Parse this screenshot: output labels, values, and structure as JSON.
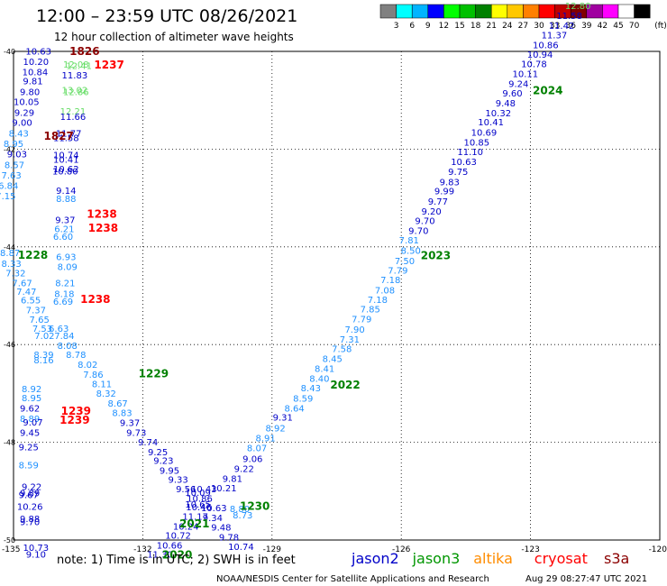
{
  "header": {
    "title": "12:00 – 23:59 UTC 08/26/2021",
    "subtitle": "12 hour collection of altimeter wave heights"
  },
  "footer": {
    "note": "note:  1) Time is in UTC; 2) SWH is in feet",
    "credit": "NOAA/NESDIS Center for Satellite Applications and Research",
    "stamp": "Aug 29 08:27:47 UTC 2021"
  },
  "legend": {
    "unit": "(ft)",
    "colors": [
      "#808080",
      "#00ffff",
      "#00b4ff",
      "#0000ff",
      "#00ff00",
      "#00c000",
      "#008000",
      "#ffff00",
      "#ffc800",
      "#ff8000",
      "#ff0000",
      "#c00000",
      "#800000",
      "#a000a0",
      "#ff00ff",
      "#ffffff",
      "#000000"
    ],
    "labels": [
      "3",
      "6",
      "9",
      "12",
      "15",
      "18",
      "21",
      "24",
      "27",
      "30",
      "33",
      "36",
      "39",
      "42",
      "45",
      "70"
    ]
  },
  "satellites": [
    {
      "name": "jason2",
      "color": "#0000c8"
    },
    {
      "name": "jason3",
      "color": "#009600"
    },
    {
      "name": "altika",
      "color": "#ff8c00"
    },
    {
      "name": "cryosat",
      "color": "#ff0000"
    },
    {
      "name": "s3a",
      "color": "#8b0000"
    }
  ],
  "chart_data": {
    "type": "scatter",
    "xlim": [
      -135,
      -120
    ],
    "ylim": [
      -50,
      -40
    ],
    "x_ticks": [
      "-135",
      "-132",
      "-129",
      "-126",
      "-123",
      "-120"
    ],
    "y_ticks": [
      "-40",
      "-42",
      "-44",
      "-46",
      "-48",
      "-50"
    ],
    "grid": true,
    "text_color_by_ft": [
      {
        "max": 6,
        "color": "#00b4c8"
      },
      {
        "max": 9,
        "color": "#1e90ff"
      },
      {
        "max": 12,
        "color": "#0000c8"
      },
      {
        "max": 15,
        "color": "#66dd66"
      }
    ],
    "points": [
      {
        "x": -134.42,
        "y": -40.01,
        "v": 10.63
      },
      {
        "x": -134.48,
        "y": -40.22,
        "v": 10.2
      },
      {
        "x": -133.55,
        "y": -40.28,
        "v": 12.08
      },
      {
        "x": -133.48,
        "y": -40.3,
        "v": 12.41
      },
      {
        "x": -134.5,
        "y": -40.43,
        "v": 10.84
      },
      {
        "x": -133.58,
        "y": -40.5,
        "v": 11.83
      },
      {
        "x": -134.55,
        "y": -40.62,
        "v": 9.81
      },
      {
        "x": -134.62,
        "y": -40.84,
        "v": 9.8
      },
      {
        "x": -133.58,
        "y": -40.8,
        "v": 13.02
      },
      {
        "x": -133.55,
        "y": -40.84,
        "v": 12.86
      },
      {
        "x": -134.7,
        "y": -41.04,
        "v": 10.05
      },
      {
        "x": -134.75,
        "y": -41.26,
        "v": 9.29
      },
      {
        "x": -133.62,
        "y": -41.24,
        "v": 12.21
      },
      {
        "x": -133.62,
        "y": -41.35,
        "v": 11.66
      },
      {
        "x": -134.8,
        "y": -41.47,
        "v": 9.0
      },
      {
        "x": -134.88,
        "y": -41.69,
        "v": 8.43
      },
      {
        "x": -133.72,
        "y": -41.69,
        "v": 11.77
      },
      {
        "x": -133.78,
        "y": -41.78,
        "v": 11.58
      },
      {
        "x": -135.0,
        "y": -41.9,
        "v": 8.95
      },
      {
        "x": -134.92,
        "y": -42.11,
        "v": 9.03
      },
      {
        "x": -133.78,
        "y": -42.13,
        "v": 10.74
      },
      {
        "x": -133.78,
        "y": -42.22,
        "v": 10.41
      },
      {
        "x": -134.98,
        "y": -42.33,
        "v": 8.57
      },
      {
        "x": -133.78,
        "y": -42.42,
        "v": 10.62
      },
      {
        "x": -133.8,
        "y": -42.46,
        "v": 10.8
      },
      {
        "x": -135.05,
        "y": -42.55,
        "v": 7.63
      },
      {
        "x": -135.12,
        "y": -42.76,
        "v": 6.84
      },
      {
        "x": -133.78,
        "y": -42.86,
        "v": 9.14
      },
      {
        "x": -135.18,
        "y": -42.97,
        "v": 7.15
      },
      {
        "x": -133.78,
        "y": -43.03,
        "v": 8.88
      },
      {
        "x": -133.8,
        "y": -43.46,
        "v": 9.37
      },
      {
        "x": -133.82,
        "y": -43.64,
        "v": 6.21
      },
      {
        "x": -133.85,
        "y": -43.8,
        "v": 6.6
      },
      {
        "x": -135.08,
        "y": -44.13,
        "v": 8.87
      },
      {
        "x": -133.78,
        "y": -44.22,
        "v": 6.93
      },
      {
        "x": -135.05,
        "y": -44.35,
        "v": 8.33
      },
      {
        "x": -133.75,
        "y": -44.42,
        "v": 8.09
      },
      {
        "x": -134.95,
        "y": -44.55,
        "v": 7.32
      },
      {
        "x": -134.8,
        "y": -44.75,
        "v": 7.67
      },
      {
        "x": -133.8,
        "y": -44.75,
        "v": 8.21
      },
      {
        "x": -134.7,
        "y": -44.93,
        "v": 7.47
      },
      {
        "x": -133.82,
        "y": -44.97,
        "v": 8.18
      },
      {
        "x": -134.6,
        "y": -45.1,
        "v": 6.55
      },
      {
        "x": -133.85,
        "y": -45.13,
        "v": 6.69
      },
      {
        "x": -134.48,
        "y": -45.3,
        "v": 7.37
      },
      {
        "x": -134.4,
        "y": -45.5,
        "v": 7.65
      },
      {
        "x": -134.33,
        "y": -45.68,
        "v": 7.53
      },
      {
        "x": -133.95,
        "y": -45.68,
        "v": 6.63
      },
      {
        "x": -134.28,
        "y": -45.83,
        "v": 7.02
      },
      {
        "x": -133.82,
        "y": -45.83,
        "v": 7.84
      },
      {
        "x": -133.75,
        "y": -46.03,
        "v": 8.08
      },
      {
        "x": -134.3,
        "y": -46.22,
        "v": 8.39
      },
      {
        "x": -133.55,
        "y": -46.22,
        "v": 8.78
      },
      {
        "x": -134.3,
        "y": -46.33,
        "v": 8.16
      },
      {
        "x": -133.28,
        "y": -46.42,
        "v": 8.02
      },
      {
        "x": -133.15,
        "y": -46.62,
        "v": 7.86
      },
      {
        "x": -132.95,
        "y": -46.82,
        "v": 8.11
      },
      {
        "x": -134.58,
        "y": -46.92,
        "v": 8.92
      },
      {
        "x": -132.85,
        "y": -47.01,
        "v": 8.32
      },
      {
        "x": -134.58,
        "y": -47.1,
        "v": 8.95
      },
      {
        "x": -134.62,
        "y": -47.32,
        "v": 9.62
      },
      {
        "x": -132.58,
        "y": -47.21,
        "v": 8.67
      },
      {
        "x": -132.48,
        "y": -47.41,
        "v": 8.83
      },
      {
        "x": -134.62,
        "y": -47.53,
        "v": 8.89
      },
      {
        "x": -134.55,
        "y": -47.6,
        "v": 9.07
      },
      {
        "x": -132.3,
        "y": -47.61,
        "v": 9.37
      },
      {
        "x": -134.62,
        "y": -47.81,
        "v": 9.45
      },
      {
        "x": -132.15,
        "y": -47.81,
        "v": 9.73
      },
      {
        "x": -131.88,
        "y": -48.01,
        "v": 9.74
      },
      {
        "x": -134.65,
        "y": -48.11,
        "v": 9.25
      },
      {
        "x": -131.65,
        "y": -48.21,
        "v": 9.25
      },
      {
        "x": -131.52,
        "y": -48.39,
        "v": 9.23
      },
      {
        "x": -134.65,
        "y": -48.48,
        "v": 8.59
      },
      {
        "x": -131.38,
        "y": -48.59,
        "v": 9.95
      },
      {
        "x": -131.18,
        "y": -48.77,
        "v": 9.33
      },
      {
        "x": -134.58,
        "y": -48.92,
        "v": 9.22
      },
      {
        "x": -131.0,
        "y": -48.97,
        "v": 9.56
      },
      {
        "x": -134.62,
        "y": -49.05,
        "v": 9.89
      },
      {
        "x": -134.65,
        "y": -49.09,
        "v": 9.67
      },
      {
        "x": -130.72,
        "y": -49.04,
        "v": 10.09
      },
      {
        "x": -130.58,
        "y": -48.97,
        "v": 10.43
      },
      {
        "x": -130.68,
        "y": -49.16,
        "v": 10.86
      },
      {
        "x": -134.62,
        "y": -49.33,
        "v": 10.26
      },
      {
        "x": -130.72,
        "y": -49.28,
        "v": 10.65
      },
      {
        "x": -130.7,
        "y": -49.34,
        "v": 10.46
      },
      {
        "x": -130.35,
        "y": -49.35,
        "v": 10.63
      },
      {
        "x": -130.78,
        "y": -49.53,
        "v": 11.17
      },
      {
        "x": -134.62,
        "y": -49.58,
        "v": 9.88
      },
      {
        "x": -134.62,
        "y": -49.64,
        "v": 9.7
      },
      {
        "x": -130.38,
        "y": -49.56,
        "v": 9.34
      },
      {
        "x": -131.0,
        "y": -49.73,
        "v": 10.24
      },
      {
        "x": -130.18,
        "y": -49.75,
        "v": 9.48
      },
      {
        "x": -131.18,
        "y": -49.92,
        "v": 10.72
      },
      {
        "x": -130.0,
        "y": -49.95,
        "v": 9.78
      },
      {
        "x": -131.38,
        "y": -50.12,
        "v": 10.66
      },
      {
        "x": -134.48,
        "y": -50.17,
        "v": 10.73
      },
      {
        "x": -134.48,
        "y": -50.3,
        "v": 9.1
      },
      {
        "x": -131.6,
        "y": -50.3,
        "v": 11.3
      },
      {
        "x": -129.72,
        "y": -50.15,
        "v": 10.74
      },
      {
        "x": -129.68,
        "y": -49.5,
        "v": 8.73
      },
      {
        "x": -129.75,
        "y": -49.37,
        "v": 8.8
      },
      {
        "x": -130.12,
        "y": -48.95,
        "v": 10.21
      },
      {
        "x": -129.92,
        "y": -48.75,
        "v": 9.81
      },
      {
        "x": -129.65,
        "y": -48.55,
        "v": 9.22
      },
      {
        "x": -129.45,
        "y": -48.35,
        "v": 9.06
      },
      {
        "x": -129.35,
        "y": -48.13,
        "v": 8.07
      },
      {
        "x": -129.15,
        "y": -47.92,
        "v": 8.91
      },
      {
        "x": -128.92,
        "y": -47.72,
        "v": 8.92
      },
      {
        "x": -128.75,
        "y": -47.5,
        "v": 9.31
      },
      {
        "x": -128.48,
        "y": -47.32,
        "v": 8.64
      },
      {
        "x": -128.28,
        "y": -47.11,
        "v": 8.59
      },
      {
        "x": -128.1,
        "y": -46.9,
        "v": 8.43
      },
      {
        "x": -127.9,
        "y": -46.71,
        "v": 8.4
      },
      {
        "x": -127.78,
        "y": -46.5,
        "v": 8.41
      },
      {
        "x": -127.6,
        "y": -46.3,
        "v": 8.45
      },
      {
        "x": -127.38,
        "y": -46.1,
        "v": 7.58
      },
      {
        "x": -127.2,
        "y": -45.9,
        "v": 7.31
      },
      {
        "x": -127.08,
        "y": -45.7,
        "v": 7.9
      },
      {
        "x": -126.92,
        "y": -45.49,
        "v": 7.79
      },
      {
        "x": -126.72,
        "y": -45.29,
        "v": 7.85
      },
      {
        "x": -126.55,
        "y": -45.09,
        "v": 7.18
      },
      {
        "x": -126.38,
        "y": -44.9,
        "v": 7.08
      },
      {
        "x": -126.25,
        "y": -44.69,
        "v": 7.18
      },
      {
        "x": -126.08,
        "y": -44.49,
        "v": 7.79
      },
      {
        "x": -125.92,
        "y": -44.3,
        "v": 7.5
      },
      {
        "x": -125.78,
        "y": -44.09,
        "v": 8.5
      },
      {
        "x": -125.82,
        "y": -43.87,
        "v": 7.81
      },
      {
        "x": -125.6,
        "y": -43.68,
        "v": 9.7
      },
      {
        "x": -125.45,
        "y": -43.48,
        "v": 9.7
      },
      {
        "x": -125.3,
        "y": -43.28,
        "v": 9.2
      },
      {
        "x": -125.15,
        "y": -43.08,
        "v": 9.77
      },
      {
        "x": -125.0,
        "y": -42.87,
        "v": 9.99
      },
      {
        "x": -124.88,
        "y": -42.68,
        "v": 9.83
      },
      {
        "x": -124.68,
        "y": -42.47,
        "v": 9.75
      },
      {
        "x": -124.55,
        "y": -42.27,
        "v": 10.63
      },
      {
        "x": -124.4,
        "y": -42.07,
        "v": 11.1
      },
      {
        "x": -124.25,
        "y": -41.87,
        "v": 10.85
      },
      {
        "x": -124.08,
        "y": -41.67,
        "v": 10.69
      },
      {
        "x": -123.92,
        "y": -41.46,
        "v": 10.41
      },
      {
        "x": -123.75,
        "y": -41.27,
        "v": 10.32
      },
      {
        "x": -123.58,
        "y": -41.07,
        "v": 9.48
      },
      {
        "x": -123.42,
        "y": -40.87,
        "v": 9.6
      },
      {
        "x": -123.28,
        "y": -40.67,
        "v": 9.24
      },
      {
        "x": -123.12,
        "y": -40.47,
        "v": 10.11
      },
      {
        "x": -122.92,
        "y": -40.27,
        "v": 10.78
      },
      {
        "x": -122.78,
        "y": -40.07,
        "v": 10.94
      },
      {
        "x": -122.65,
        "y": -39.88,
        "v": 10.86
      },
      {
        "x": -122.45,
        "y": -39.68,
        "v": 11.37
      },
      {
        "x": -122.28,
        "y": -39.48,
        "v": 11.42
      },
      {
        "x": -122.1,
        "y": -39.28,
        "v": 11.58
      },
      {
        "x": -121.9,
        "y": -39.08,
        "v": 12.8
      }
    ],
    "time_labels": [
      {
        "x": -133.35,
        "y": -40.0,
        "text": "1826",
        "color": "#8b0000"
      },
      {
        "x": -132.78,
        "y": -40.28,
        "text": "1237",
        "color": "#ff0000"
      },
      {
        "x": -133.95,
        "y": -41.73,
        "text": "1827",
        "color": "#8b0000"
      },
      {
        "x": -132.95,
        "y": -43.33,
        "text": "1238",
        "color": "#ff0000"
      },
      {
        "x": -132.92,
        "y": -43.62,
        "text": "1238",
        "color": "#ff0000"
      },
      {
        "x": -134.55,
        "y": -44.17,
        "text": "1228",
        "color": "#008000"
      },
      {
        "x": -133.1,
        "y": -45.07,
        "text": "1238",
        "color": "#ff0000"
      },
      {
        "x": -131.75,
        "y": -46.6,
        "text": "1229",
        "color": "#008000"
      },
      {
        "x": -133.55,
        "y": -47.36,
        "text": "1239",
        "color": "#ff0000"
      },
      {
        "x": -133.58,
        "y": -47.55,
        "text": "1239",
        "color": "#ff0000"
      },
      {
        "x": -129.4,
        "y": -49.31,
        "text": "1230",
        "color": "#008000"
      },
      {
        "x": -130.8,
        "y": -49.67,
        "text": "2021",
        "color": "#008000"
      },
      {
        "x": -131.2,
        "y": -50.3,
        "text": "2020",
        "color": "#008000"
      },
      {
        "x": -127.3,
        "y": -46.83,
        "text": "2022",
        "color": "#008000"
      },
      {
        "x": -125.2,
        "y": -44.18,
        "text": "2023",
        "color": "#008000"
      },
      {
        "x": -122.6,
        "y": -40.8,
        "text": "2024",
        "color": "#008000"
      }
    ]
  }
}
